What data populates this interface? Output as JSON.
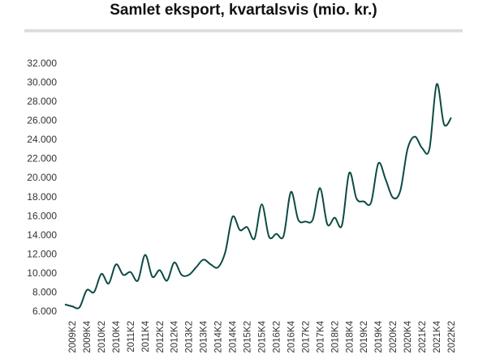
{
  "chart_data": {
    "type": "line",
    "title": "Samlet eksport, kvartalsvis (mio. kr.)",
    "xlabel": "",
    "ylabel": "",
    "ylim": [
      6000,
      32000
    ],
    "yticks": [
      6000,
      8000,
      10000,
      12000,
      14000,
      16000,
      18000,
      20000,
      22000,
      24000,
      26000,
      28000,
      30000,
      32000
    ],
    "ytick_labels": [
      "6.000",
      "8.000",
      "10.000",
      "12.000",
      "14.000",
      "16.000",
      "18.000",
      "20.000",
      "22.000",
      "24.000",
      "26.000",
      "28.000",
      "30.000",
      "32.000"
    ],
    "x_tick_labels": [
      "2009K2",
      "2009K4",
      "2010K2",
      "2010K4",
      "2011K2",
      "2011K4",
      "2012K2",
      "2012K4",
      "2013K2",
      "2013K4",
      "2014K2",
      "2014K4",
      "2015K2",
      "2015K4",
      "2016K2",
      "2016K4",
      "2017K2",
      "2017K4",
      "2018K2",
      "2018K4",
      "2019K2",
      "2019K4",
      "2020K2",
      "2020K4",
      "2021K2",
      "2021K4",
      "2022K2"
    ],
    "grid": false,
    "legend": "none",
    "line_color": "#0d4a45",
    "categories": [
      "2009K1",
      "2009K2",
      "2009K3",
      "2009K4",
      "2010K1",
      "2010K2",
      "2010K3",
      "2010K4",
      "2011K1",
      "2011K2",
      "2011K3",
      "2011K4",
      "2012K1",
      "2012K2",
      "2012K3",
      "2012K4",
      "2013K1",
      "2013K2",
      "2013K3",
      "2013K4",
      "2014K1",
      "2014K2",
      "2014K3",
      "2014K4",
      "2015K1",
      "2015K2",
      "2015K3",
      "2015K4",
      "2016K1",
      "2016K2",
      "2016K3",
      "2016K4",
      "2017K1",
      "2017K2",
      "2017K3",
      "2017K4",
      "2018K1",
      "2018K2",
      "2018K3",
      "2018K4",
      "2019K1",
      "2019K2",
      "2019K3",
      "2019K4",
      "2020K1",
      "2020K2",
      "2020K3",
      "2020K4",
      "2021K1",
      "2021K2",
      "2021K3",
      "2021K4",
      "2022K1",
      "2022K2"
    ],
    "values": [
      6700,
      6500,
      6400,
      8200,
      8000,
      9900,
      8900,
      10900,
      9800,
      10100,
      9200,
      11900,
      9600,
      10300,
      9200,
      11100,
      9800,
      9800,
      10600,
      11400,
      10900,
      10600,
      12200,
      15900,
      14500,
      14800,
      13600,
      17200,
      13800,
      14100,
      13900,
      18500,
      15600,
      15400,
      15600,
      18900,
      15100,
      15800,
      15000,
      20500,
      17800,
      17500,
      17400,
      21500,
      19800,
      17900,
      18600,
      23000,
      24300,
      23100,
      23000,
      29800,
      25600,
      26300
    ]
  }
}
